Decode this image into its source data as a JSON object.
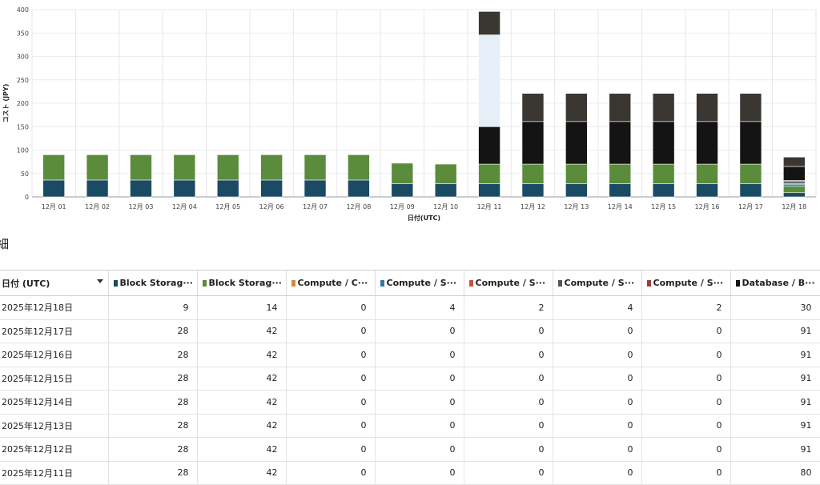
{
  "chart_data": {
    "type": "bar",
    "stacked": true,
    "ylabel": "コスト (JPY)",
    "xlabel": "日付(UTC)",
    "ylim": [
      0,
      400
    ],
    "yticks": [
      0,
      50,
      100,
      150,
      200,
      250,
      300,
      350,
      400
    ],
    "grid": true,
    "categories": [
      "12月 01",
      "12月 02",
      "12月 03",
      "12月 04",
      "12月 05",
      "12月 06",
      "12月 07",
      "12月 08",
      "12月 09",
      "12月 10",
      "12月 11",
      "12月 12",
      "12月 13",
      "12月 14",
      "12月 15",
      "12月 16",
      "12月 17",
      "12月 18"
    ],
    "series": [
      {
        "color": "#1b4a63",
        "values": [
          36,
          36,
          36,
          36,
          36,
          36,
          36,
          36,
          28,
          28,
          28,
          28,
          28,
          28,
          28,
          28,
          28,
          9
        ]
      },
      {
        "color": "#5a8c3c",
        "values": [
          54,
          54,
          54,
          54,
          54,
          54,
          54,
          54,
          44,
          42,
          42,
          42,
          42,
          42,
          42,
          42,
          42,
          14
        ]
      },
      {
        "color": "#d4893a",
        "values": [
          0,
          0,
          0,
          0,
          0,
          0,
          0,
          0,
          0,
          0,
          0,
          0,
          0,
          0,
          0,
          0,
          0,
          0
        ]
      },
      {
        "color": "#2f7aa8",
        "values": [
          0,
          0,
          0,
          0,
          0,
          0,
          0,
          0,
          0,
          0,
          0,
          0,
          0,
          0,
          0,
          0,
          0,
          4
        ]
      },
      {
        "color": "#c8553d",
        "values": [
          0,
          0,
          0,
          0,
          0,
          0,
          0,
          0,
          0,
          0,
          0,
          0,
          0,
          0,
          0,
          0,
          0,
          2
        ]
      },
      {
        "color": "#555555",
        "values": [
          0,
          0,
          0,
          0,
          0,
          0,
          0,
          0,
          0,
          0,
          0,
          0,
          0,
          0,
          0,
          0,
          0,
          4
        ]
      },
      {
        "color": "#a33a3a",
        "values": [
          0,
          0,
          0,
          0,
          0,
          0,
          0,
          0,
          0,
          0,
          0,
          0,
          0,
          0,
          0,
          0,
          0,
          2
        ]
      },
      {
        "color": "#141414",
        "values": [
          0,
          0,
          0,
          0,
          0,
          0,
          0,
          0,
          0,
          0,
          80,
          91,
          91,
          91,
          91,
          91,
          91,
          30
        ]
      },
      {
        "color": "#e6eef7",
        "values": [
          0,
          0,
          0,
          0,
          0,
          0,
          0,
          0,
          0,
          0,
          196,
          0,
          0,
          0,
          0,
          0,
          0,
          0
        ]
      },
      {
        "color": "#3a3632",
        "values": [
          0,
          0,
          0,
          0,
          0,
          0,
          0,
          0,
          0,
          0,
          50,
          60,
          60,
          60,
          60,
          60,
          60,
          20
        ]
      }
    ]
  },
  "section_title": "細",
  "table": {
    "columns": [
      {
        "label": "日付 (UTC)",
        "swatch": ""
      },
      {
        "label": "Block Storag···",
        "swatch": "#1b4a63"
      },
      {
        "label": "Block Storag···",
        "swatch": "#5a8c3c"
      },
      {
        "label": "Compute / C···",
        "swatch": "#d4893a"
      },
      {
        "label": "Compute / S···",
        "swatch": "#2f7aa8"
      },
      {
        "label": "Compute / S···",
        "swatch": "#c8553d"
      },
      {
        "label": "Compute / S···",
        "swatch": "#555555"
      },
      {
        "label": "Compute / S···",
        "swatch": "#a33a3a"
      },
      {
        "label": "Database / B···",
        "swatch": "#141414"
      }
    ],
    "rows": [
      [
        "2025年12月18日",
        "9",
        "14",
        "0",
        "4",
        "2",
        "4",
        "2",
        "30"
      ],
      [
        "2025年12月17日",
        "28",
        "42",
        "0",
        "0",
        "0",
        "0",
        "0",
        "91"
      ],
      [
        "2025年12月16日",
        "28",
        "42",
        "0",
        "0",
        "0",
        "0",
        "0",
        "91"
      ],
      [
        "2025年12月15日",
        "28",
        "42",
        "0",
        "0",
        "0",
        "0",
        "0",
        "91"
      ],
      [
        "2025年12月14日",
        "28",
        "42",
        "0",
        "0",
        "0",
        "0",
        "0",
        "91"
      ],
      [
        "2025年12月13日",
        "28",
        "42",
        "0",
        "0",
        "0",
        "0",
        "0",
        "91"
      ],
      [
        "2025年12月12日",
        "28",
        "42",
        "0",
        "0",
        "0",
        "0",
        "0",
        "91"
      ],
      [
        "2025年12月11日",
        "28",
        "42",
        "0",
        "0",
        "0",
        "0",
        "0",
        "80"
      ]
    ]
  }
}
